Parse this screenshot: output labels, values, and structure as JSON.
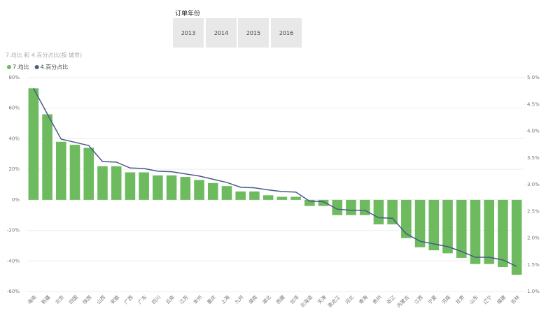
{
  "slicer": {
    "title": "订单年份",
    "options": [
      "2013",
      "2014",
      "2015",
      "2016"
    ]
  },
  "chart_data": {
    "type": "combo",
    "title": "7.均比 和 4.百分占比(按 城市)",
    "categories": [
      "海南",
      "新疆",
      "北京",
      "四国",
      "陕西",
      "山西",
      "安徽",
      "广西",
      "广东",
      "四川",
      "云南",
      "江苏",
      "本州",
      "重庆",
      "上海",
      "九州",
      "湖南",
      "湖北",
      "西藏",
      "台湾",
      "北海道",
      "天津",
      "黑龙江",
      "河北",
      "青海",
      "贵州",
      "浙江",
      "内蒙古",
      "江西",
      "宁夏",
      "河南",
      "甘肃",
      "山东",
      "辽宁",
      "福建",
      "吉林"
    ],
    "series": [
      {
        "name": "7.均比",
        "color": "#6dbb5e",
        "type": "bar",
        "values": [
          73,
          56,
          38,
          36,
          34,
          22,
          22,
          18,
          18,
          16,
          16,
          15,
          13,
          11,
          9,
          5.5,
          5.5,
          3,
          2,
          2,
          -4,
          -4,
          -10,
          -10,
          -10,
          -16,
          -16,
          -25,
          -31,
          -33,
          -35,
          -38,
          -42,
          -42,
          -44,
          -49
        ]
      },
      {
        "name": "4.百分占比",
        "color": "#4a5a8a",
        "type": "line",
        "axis": "y2",
        "values": [
          4.8,
          4.32,
          3.85,
          3.79,
          3.73,
          3.43,
          3.42,
          3.31,
          3.3,
          3.25,
          3.24,
          3.2,
          3.16,
          3.1,
          3.04,
          2.95,
          2.94,
          2.9,
          2.87,
          2.86,
          2.69,
          2.68,
          2.54,
          2.52,
          2.52,
          2.38,
          2.37,
          2.08,
          1.94,
          1.89,
          1.84,
          1.75,
          1.64,
          1.64,
          1.59,
          1.47
        ]
      }
    ],
    "ylim": [
      -60,
      80
    ],
    "yticks": [
      {
        "value": -60,
        "label": "-60%"
      },
      {
        "value": -40,
        "label": "-40%"
      },
      {
        "value": -20,
        "label": "-20%"
      },
      {
        "value": 0,
        "label": "0%"
      },
      {
        "value": 20,
        "label": "20%"
      },
      {
        "value": 40,
        "label": "40%"
      },
      {
        "value": 60,
        "label": "60%"
      },
      {
        "value": 80,
        "label": "80%"
      }
    ],
    "y2lim": [
      1,
      5
    ],
    "y2ticks": [
      {
        "value": 1,
        "label": "1.0%"
      },
      {
        "value": 1.5,
        "label": "1.5%"
      },
      {
        "value": 2,
        "label": "2.0%"
      },
      {
        "value": 2.5,
        "label": "2.5%"
      },
      {
        "value": 3,
        "label": "3.0%"
      },
      {
        "value": 3.5,
        "label": "3.5%"
      },
      {
        "value": 4,
        "label": "4.0%"
      },
      {
        "value": 4.5,
        "label": "4.5%"
      },
      {
        "value": 5,
        "label": "5.0%"
      }
    ],
    "grid": true
  }
}
